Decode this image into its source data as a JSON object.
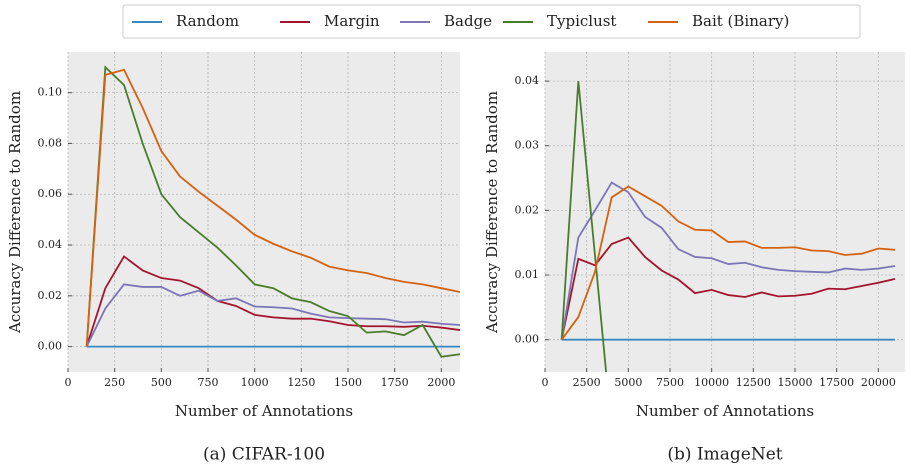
{
  "chart_data": [
    {
      "type": "line",
      "caption": "(a) CIFAR-100",
      "xlabel": "Number of Annotations",
      "ylabel": "Accuracy Difference to Random",
      "x": [
        100,
        200,
        300,
        400,
        500,
        600,
        700,
        800,
        900,
        1000,
        1100,
        1200,
        1300,
        1400,
        1500,
        1600,
        1700,
        1800,
        1900,
        2000,
        2100
      ],
      "xlim": [
        0,
        2100
      ],
      "xticks": [
        0,
        250,
        500,
        750,
        1000,
        1250,
        1500,
        1750,
        2000
      ],
      "ylim": [
        -0.01,
        0.116
      ],
      "yticks": [
        {
          "value": 0,
          "label": "0.00"
        },
        {
          "value": 0.02,
          "label": "0.02"
        },
        {
          "value": 0.04,
          "label": "0.04"
        },
        {
          "value": 0.06,
          "label": "0.06"
        },
        {
          "value": 0.08,
          "label": "0.08"
        },
        {
          "value": 0.1,
          "label": "0.10"
        }
      ],
      "grid": true,
      "series": [
        {
          "name": "Random",
          "color": "#3a88c2",
          "values": [
            0,
            0,
            0,
            0,
            0,
            0,
            0,
            0,
            0,
            0,
            0,
            0,
            0,
            0,
            0,
            0,
            0,
            0,
            0,
            0,
            0
          ]
        },
        {
          "name": "Margin",
          "color": "#a3142f",
          "values": [
            0,
            0.023,
            0.0355,
            0.03,
            0.027,
            0.026,
            0.023,
            0.018,
            0.016,
            0.0125,
            0.0115,
            0.011,
            0.011,
            0.01,
            0.0085,
            0.008,
            0.008,
            0.0078,
            0.0082,
            0.0075,
            0.0065
          ]
        },
        {
          "name": "Badge",
          "color": "#7b76b6",
          "values": [
            0,
            0.015,
            0.0245,
            0.0235,
            0.0235,
            0.02,
            0.022,
            0.018,
            0.019,
            0.0158,
            0.0155,
            0.015,
            0.013,
            0.0115,
            0.0112,
            0.011,
            0.0108,
            0.0095,
            0.0098,
            0.009,
            0.0085
          ]
        },
        {
          "name": "Typiclust",
          "color": "#4a7d2b",
          "values": [
            0,
            0.11,
            0.103,
            0.08,
            0.06,
            0.051,
            0.045,
            0.039,
            0.032,
            0.0245,
            0.023,
            0.019,
            0.0175,
            0.014,
            0.012,
            0.0055,
            0.006,
            0.0045,
            0.0085,
            -0.004,
            -0.003
          ]
        },
        {
          "name": "Bait (Binary)",
          "color": "#d5620f",
          "values": [
            0,
            0.107,
            0.109,
            0.094,
            0.077,
            0.067,
            0.061,
            0.0555,
            0.05,
            0.044,
            0.0405,
            0.0375,
            0.035,
            0.0315,
            0.03,
            0.029,
            0.027,
            0.0255,
            0.0245,
            0.023,
            0.0215
          ]
        }
      ]
    },
    {
      "type": "line",
      "caption": "(b) ImageNet",
      "xlabel": "Number of Annotations",
      "ylabel": "Accuracy Difference to Random",
      "x": [
        1000,
        2000,
        3000,
        4000,
        5000,
        6000,
        7000,
        8000,
        9000,
        10000,
        11000,
        12000,
        13000,
        14000,
        15000,
        16000,
        17000,
        18000,
        19000,
        20000,
        21000
      ],
      "xlim": [
        0,
        21600
      ],
      "xticks": [
        0,
        2500,
        5000,
        7500,
        10000,
        12500,
        15000,
        17500,
        20000
      ],
      "ylim": [
        -0.005,
        0.0445
      ],
      "yticks": [
        {
          "value": 0,
          "label": "0.00"
        },
        {
          "value": 0.01,
          "label": "0.01"
        },
        {
          "value": 0.02,
          "label": "0.02"
        },
        {
          "value": 0.03,
          "label": "0.03"
        },
        {
          "value": 0.04,
          "label": "0.04"
        }
      ],
      "grid": true,
      "series": [
        {
          "name": "Random",
          "color": "#3a88c2",
          "values": [
            0,
            0,
            0,
            0,
            0,
            0,
            0,
            0,
            0,
            0,
            0,
            0,
            0,
            0,
            0,
            0,
            0,
            0,
            0,
            0,
            0
          ]
        },
        {
          "name": "Margin",
          "color": "#a3142f",
          "values": [
            0,
            0.0125,
            0.0115,
            0.0148,
            0.0158,
            0.0128,
            0.0107,
            0.0093,
            0.0072,
            0.0077,
            0.0069,
            0.0066,
            0.0073,
            0.0067,
            0.0068,
            0.0071,
            0.0079,
            0.0078,
            0.0083,
            0.0088,
            0.0094
          ]
        },
        {
          "name": "Badge",
          "color": "#7b76b6",
          "values": [
            0,
            0.0158,
            0.02,
            0.0243,
            0.0228,
            0.019,
            0.0173,
            0.014,
            0.0128,
            0.0126,
            0.0117,
            0.0119,
            0.0112,
            0.0108,
            0.0106,
            0.0105,
            0.0104,
            0.011,
            0.0108,
            0.011,
            0.0114
          ]
        },
        {
          "name": "Typiclust",
          "color": "#4a7d2b",
          "x": [
            1000,
            2000,
            4000
          ],
          "values": [
            0,
            0.04,
            -0.014
          ]
        },
        {
          "name": "Bait (Binary)",
          "color": "#d5620f",
          "values": [
            0,
            0.0035,
            0.0105,
            0.022,
            0.0237,
            0.0222,
            0.0207,
            0.0183,
            0.017,
            0.0169,
            0.0151,
            0.0152,
            0.0142,
            0.0142,
            0.0143,
            0.0138,
            0.0137,
            0.0131,
            0.0133,
            0.0141,
            0.0139
          ]
        }
      ]
    }
  ]
}
